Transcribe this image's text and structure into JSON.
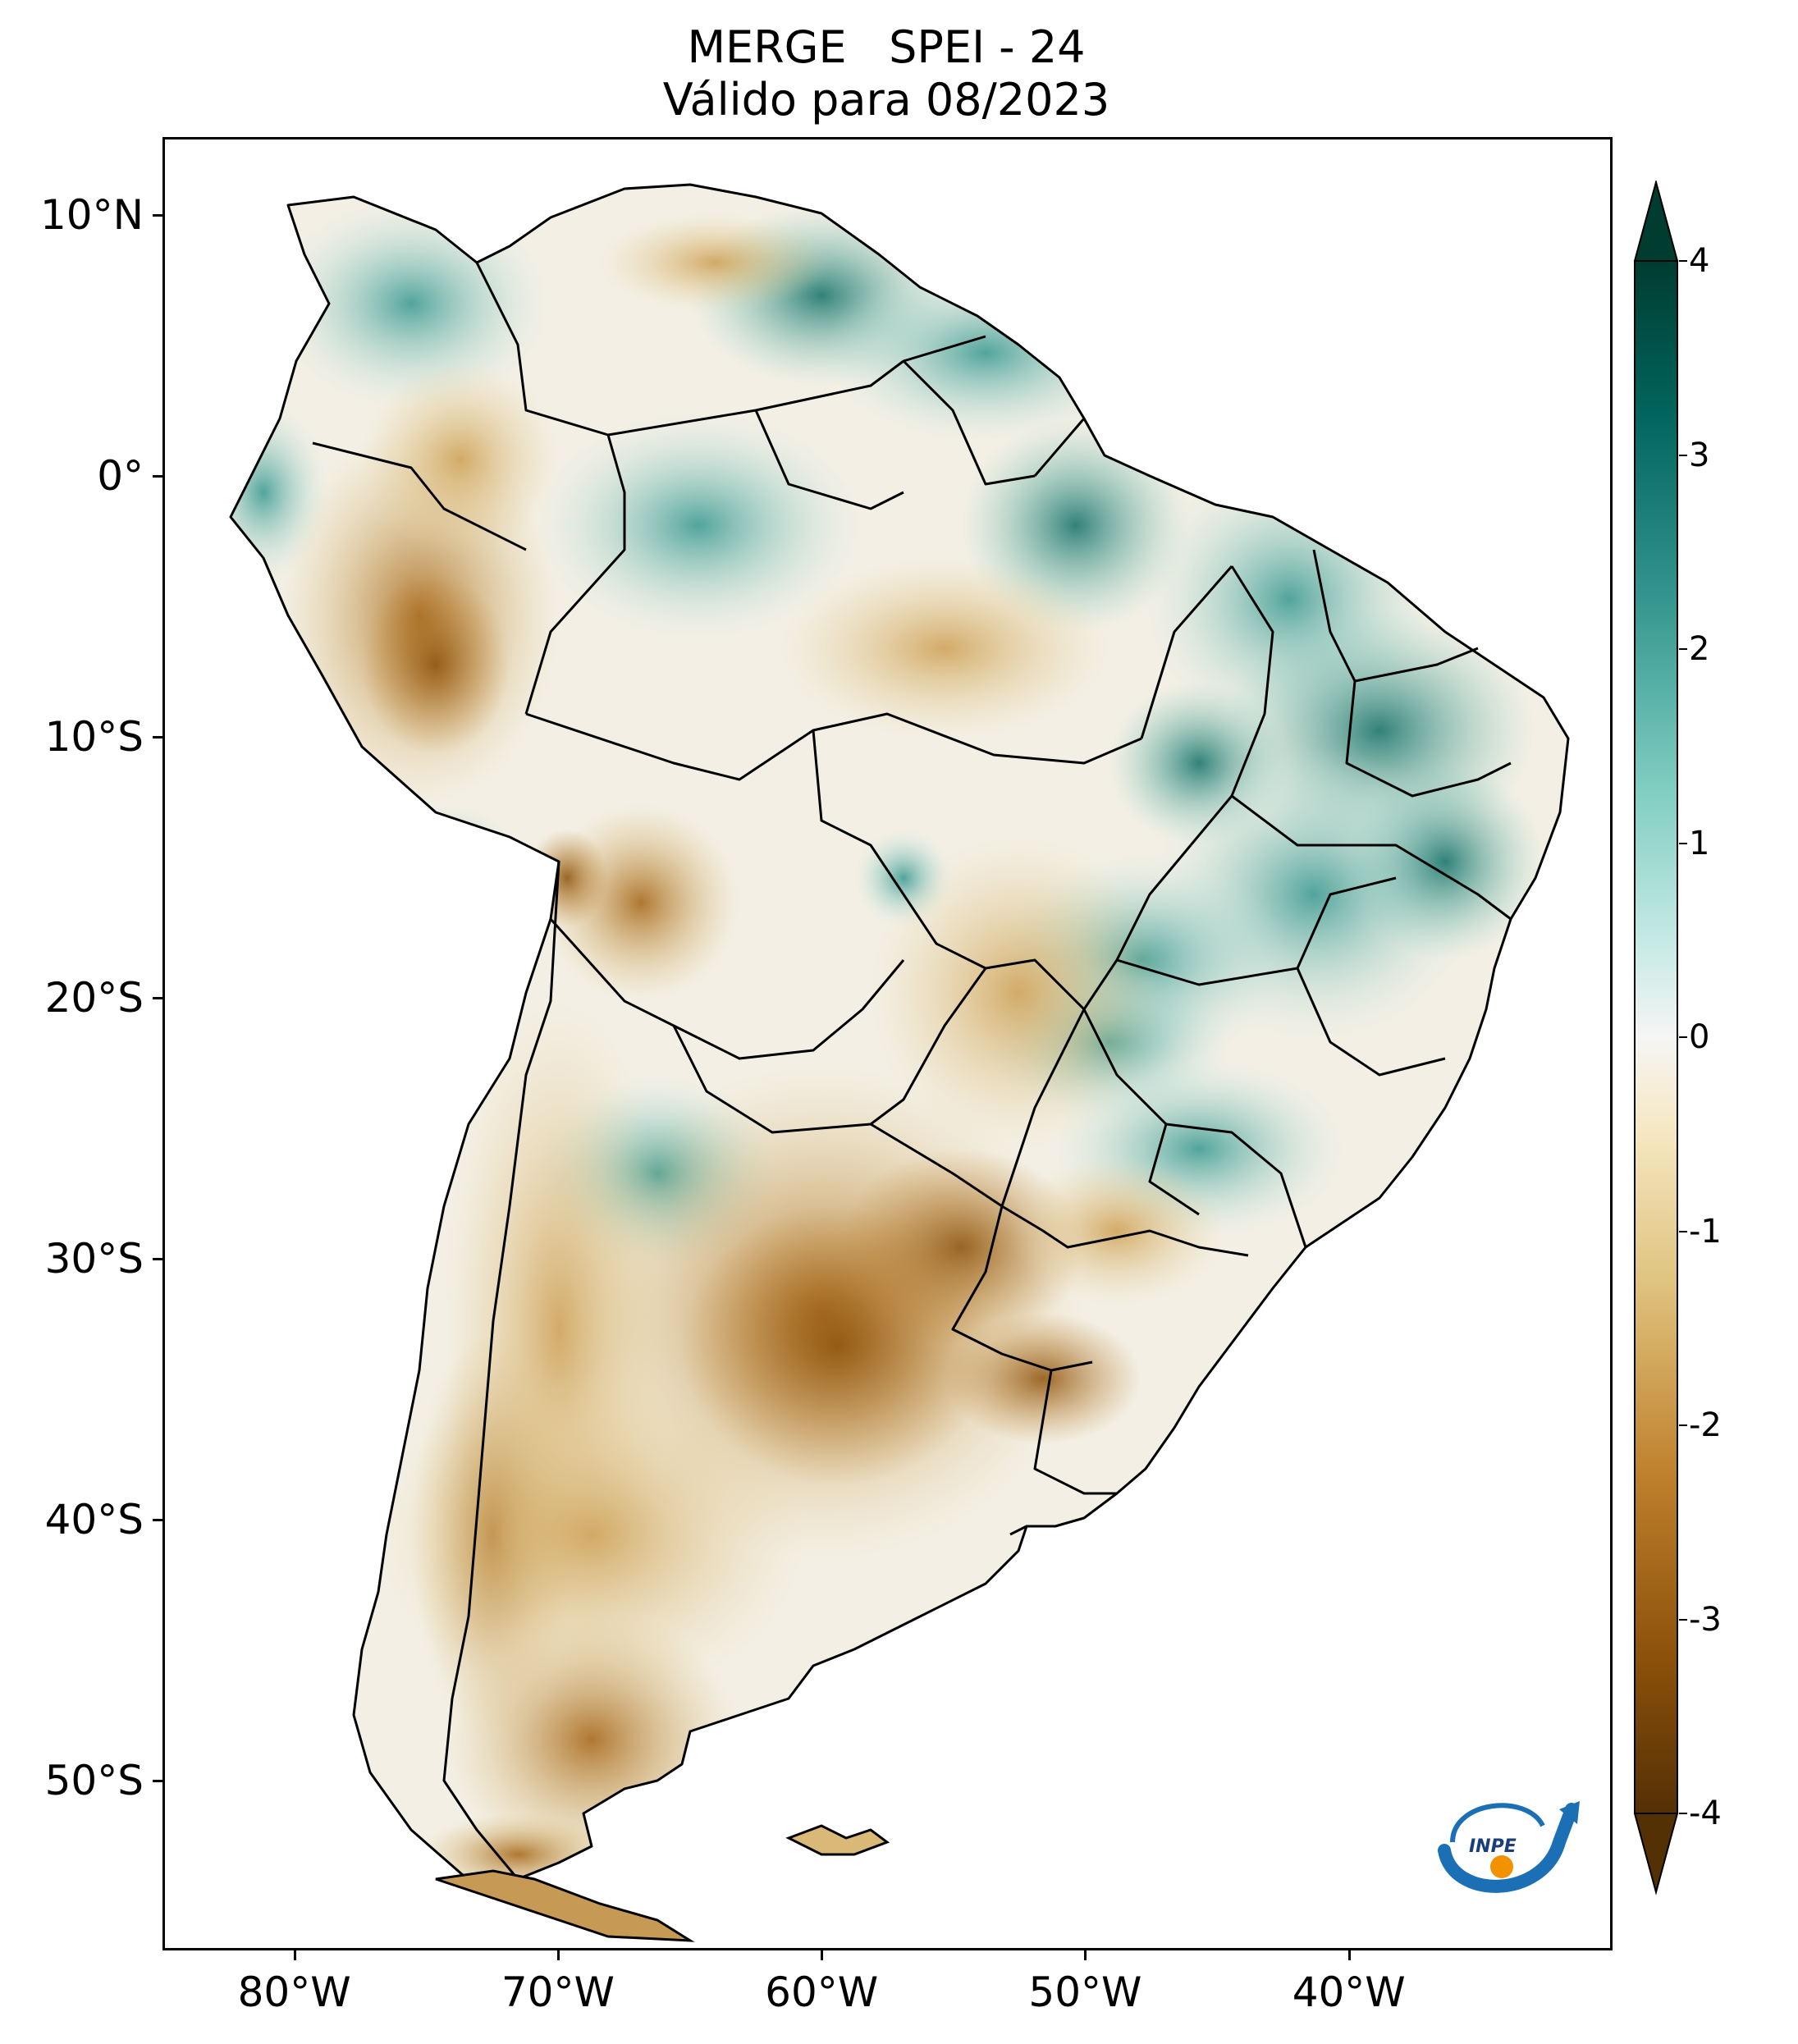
{
  "title": {
    "line1": "MERGE   SPEI - 24",
    "line2": "Válido para 08/2023"
  },
  "map": {
    "type": "choropleth-raster",
    "region": "South America",
    "variable": "SPEI - 24",
    "product": "MERGE",
    "valid_for": "08/2023",
    "lat_ticks": [
      {
        "value": 10,
        "label": "10°N"
      },
      {
        "value": 0,
        "label": "0°"
      },
      {
        "value": -10,
        "label": "10°S"
      },
      {
        "value": -20,
        "label": "20°S"
      },
      {
        "value": -30,
        "label": "30°S"
      },
      {
        "value": -40,
        "label": "40°S"
      },
      {
        "value": -50,
        "label": "50°S"
      }
    ],
    "lon_ticks": [
      {
        "value": -80,
        "label": "80°W"
      },
      {
        "value": -70,
        "label": "70°W"
      },
      {
        "value": -60,
        "label": "60°W"
      },
      {
        "value": -50,
        "label": "50°W"
      },
      {
        "value": -40,
        "label": "40°W"
      }
    ],
    "extent": {
      "lon_min": -85,
      "lon_max": -30,
      "lat_min": -56.5,
      "lat_max": 13
    }
  },
  "colorbar": {
    "colormap": "BrBG",
    "range": [
      -4,
      4
    ],
    "extend": "both",
    "ticks": [
      {
        "value": 4,
        "label": "4"
      },
      {
        "value": 3,
        "label": "3"
      },
      {
        "value": 2,
        "label": "2"
      },
      {
        "value": 1,
        "label": "1"
      },
      {
        "value": 0,
        "label": "0"
      },
      {
        "value": -1,
        "label": "-1"
      },
      {
        "value": -2,
        "label": "-2"
      },
      {
        "value": -3,
        "label": "-3"
      },
      {
        "value": -4,
        "label": "-4"
      }
    ],
    "colors": {
      "dark_brown": "#543005",
      "brown": "#8c510a",
      "tan": "#bf812d",
      "light_tan": "#dfc27d",
      "cream": "#f6e8c3",
      "white": "#f5f5f5",
      "light_teal": "#c7eae5",
      "teal": "#80cdc1",
      "mid_teal": "#35978f",
      "dark_teal": "#01665e",
      "darkest_teal": "#003c30"
    }
  },
  "logo": {
    "text": "INPE",
    "icon": "inpe-logo-icon"
  }
}
